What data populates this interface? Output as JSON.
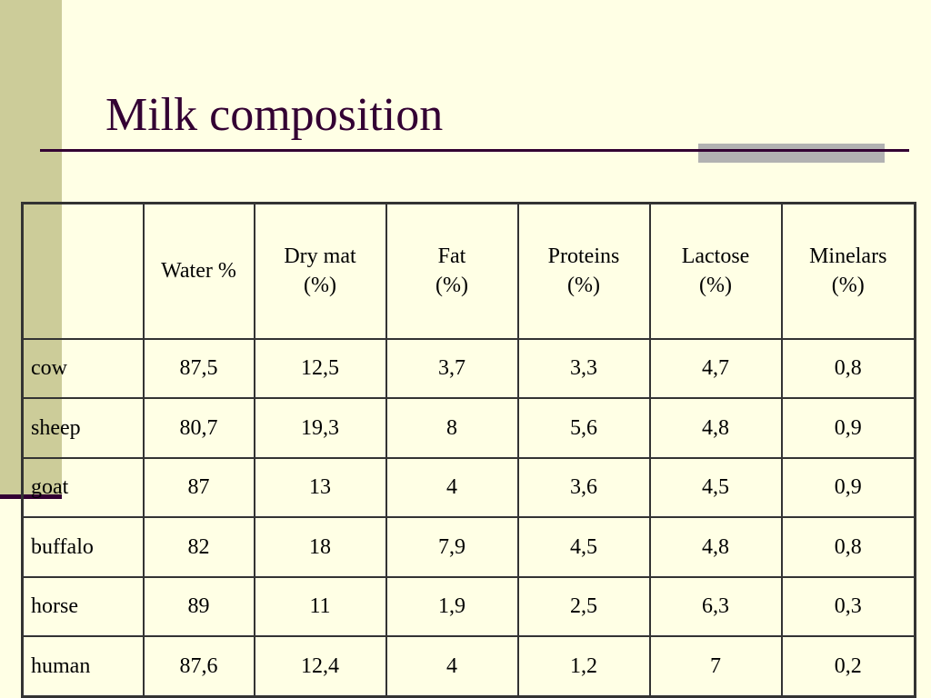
{
  "slide": {
    "title": "Milk composition"
  },
  "table": {
    "corner": "",
    "headers": [
      {
        "line1": "Water %",
        "line2": ""
      },
      {
        "line1": "Dry mat",
        "line2": "(%)"
      },
      {
        "line1": "Fat",
        "line2": "(%)"
      },
      {
        "line1": "Proteins",
        "line2": "(%)"
      },
      {
        "line1": "Lactose",
        "line2": "(%)"
      },
      {
        "line1": "Minelars",
        "line2": "(%)"
      }
    ],
    "rows": [
      {
        "label": "cow",
        "values": [
          "87,5",
          "12,5",
          "3,7",
          "3,3",
          "4,7",
          "0,8"
        ]
      },
      {
        "label": "sheep",
        "values": [
          "80,7",
          "19,3",
          "8",
          "5,6",
          "4,8",
          "0,9"
        ]
      },
      {
        "label": "goat",
        "values": [
          "87",
          "13",
          "4",
          "3,6",
          "4,5",
          "0,9"
        ]
      },
      {
        "label": "buffalo",
        "values": [
          "82",
          "18",
          "7,9",
          "4,5",
          "4,8",
          "0,8"
        ]
      },
      {
        "label": "horse",
        "values": [
          "89",
          "11",
          "1,9",
          "2,5",
          "6,3",
          "0,3"
        ]
      },
      {
        "label": "human",
        "values": [
          "87,6",
          "12,4",
          "4",
          "1,2",
          "7",
          "0,2"
        ]
      }
    ]
  },
  "theme": {
    "background": "#FFFFE5",
    "accent_stripe": "#CCCC99",
    "title_color": "#330033",
    "rule_color": "#330033",
    "bar_color": "#B2B2B2",
    "grid_color": "#333333"
  }
}
